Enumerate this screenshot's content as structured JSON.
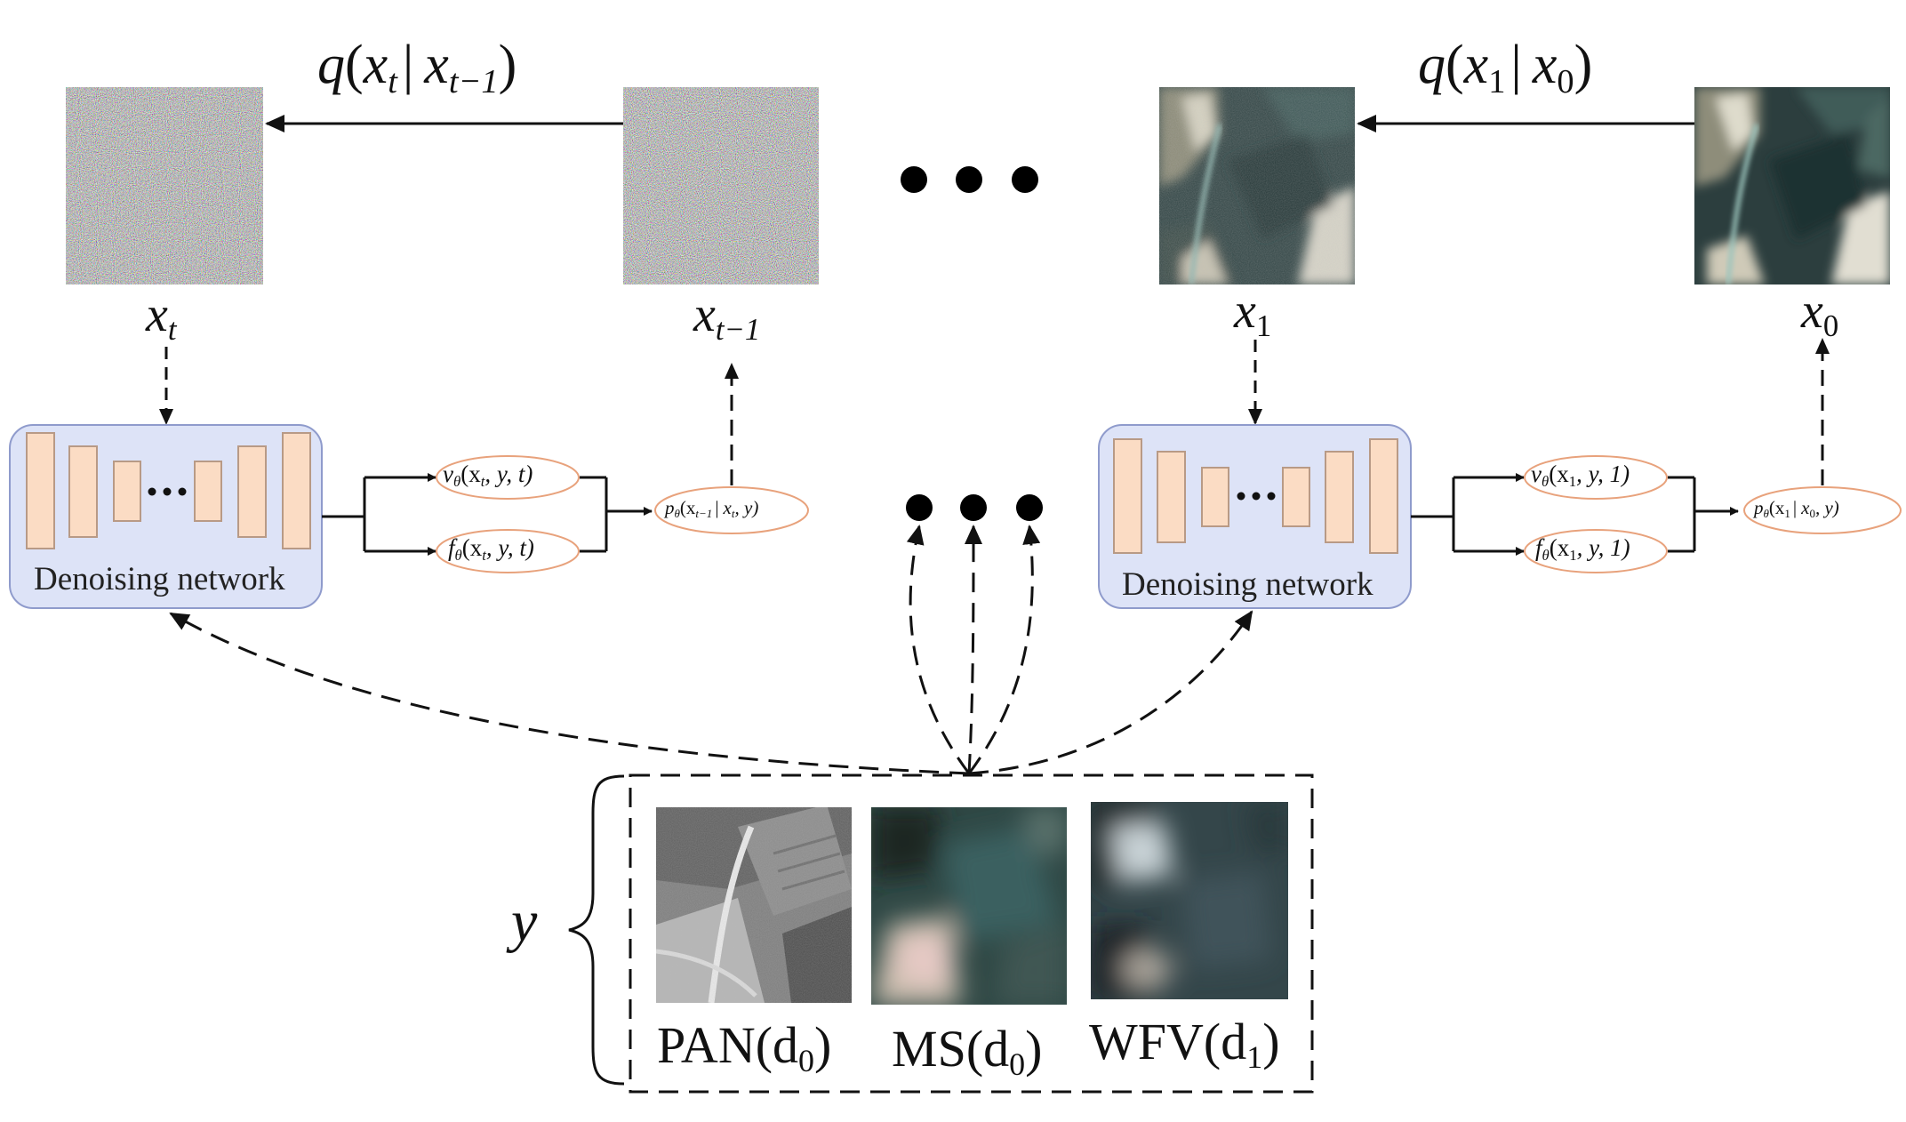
{
  "forward_top_left": {
    "q": "q",
    "x1": "x",
    "s1": "t",
    "bar": "|",
    "x2": "x",
    "s2": "t−1"
  },
  "forward_top_right": {
    "q": "q",
    "x1": "x",
    "s1": "1",
    "bar": "|",
    "x2": "x",
    "s2": "0"
  },
  "states": [
    {
      "x": "x",
      "sub": "t"
    },
    {
      "x": "x",
      "sub": "t−1"
    },
    {
      "x": "x",
      "sub": "1"
    },
    {
      "x": "x",
      "sub": "0"
    }
  ],
  "network_label": "Denoising network",
  "left_outputs": {
    "v": {
      "fn": "v",
      "theta": "θ",
      "args": "(x",
      "argsub": "t",
      "rest": ", y, t)"
    },
    "f": {
      "fn": "f",
      "theta": "θ",
      "args": "(x",
      "argsub": "t",
      "rest": ", y, t)"
    },
    "p": {
      "fn": "p",
      "theta": "θ",
      "args": "(x",
      "argsub": "t−1",
      "bar": "|",
      "x2": "x",
      "x2sub": "t",
      "rest": ", y)"
    }
  },
  "right_outputs": {
    "v": {
      "fn": "v",
      "theta": "θ",
      "args": "(x",
      "argsub": "1",
      "rest": ", y, 1)"
    },
    "f": {
      "fn": "f",
      "theta": "θ",
      "args": "(x",
      "argsub": "1",
      "rest": ", y, 1)"
    },
    "p": {
      "fn": "p",
      "theta": "θ",
      "args": "(x",
      "argsub": "1",
      "bar": "|",
      "x2": "x",
      "x2sub": "0",
      "rest": ", y)"
    }
  },
  "condition_label": "y",
  "conditions": [
    {
      "name": "PAN(d",
      "sub": "0",
      "close": ")"
    },
    {
      "name": "MS(d",
      "sub": "0",
      "close": ")"
    },
    {
      "name": "WFV(d",
      "sub": "1",
      "close": ")"
    }
  ],
  "colors": {
    "network_fill": "#dde3f7",
    "network_stroke": "#8f9bcc",
    "block_fill": "#fbdcc4",
    "block_stroke": "#b89a86",
    "ellipse_stroke": "#e8a27c"
  }
}
